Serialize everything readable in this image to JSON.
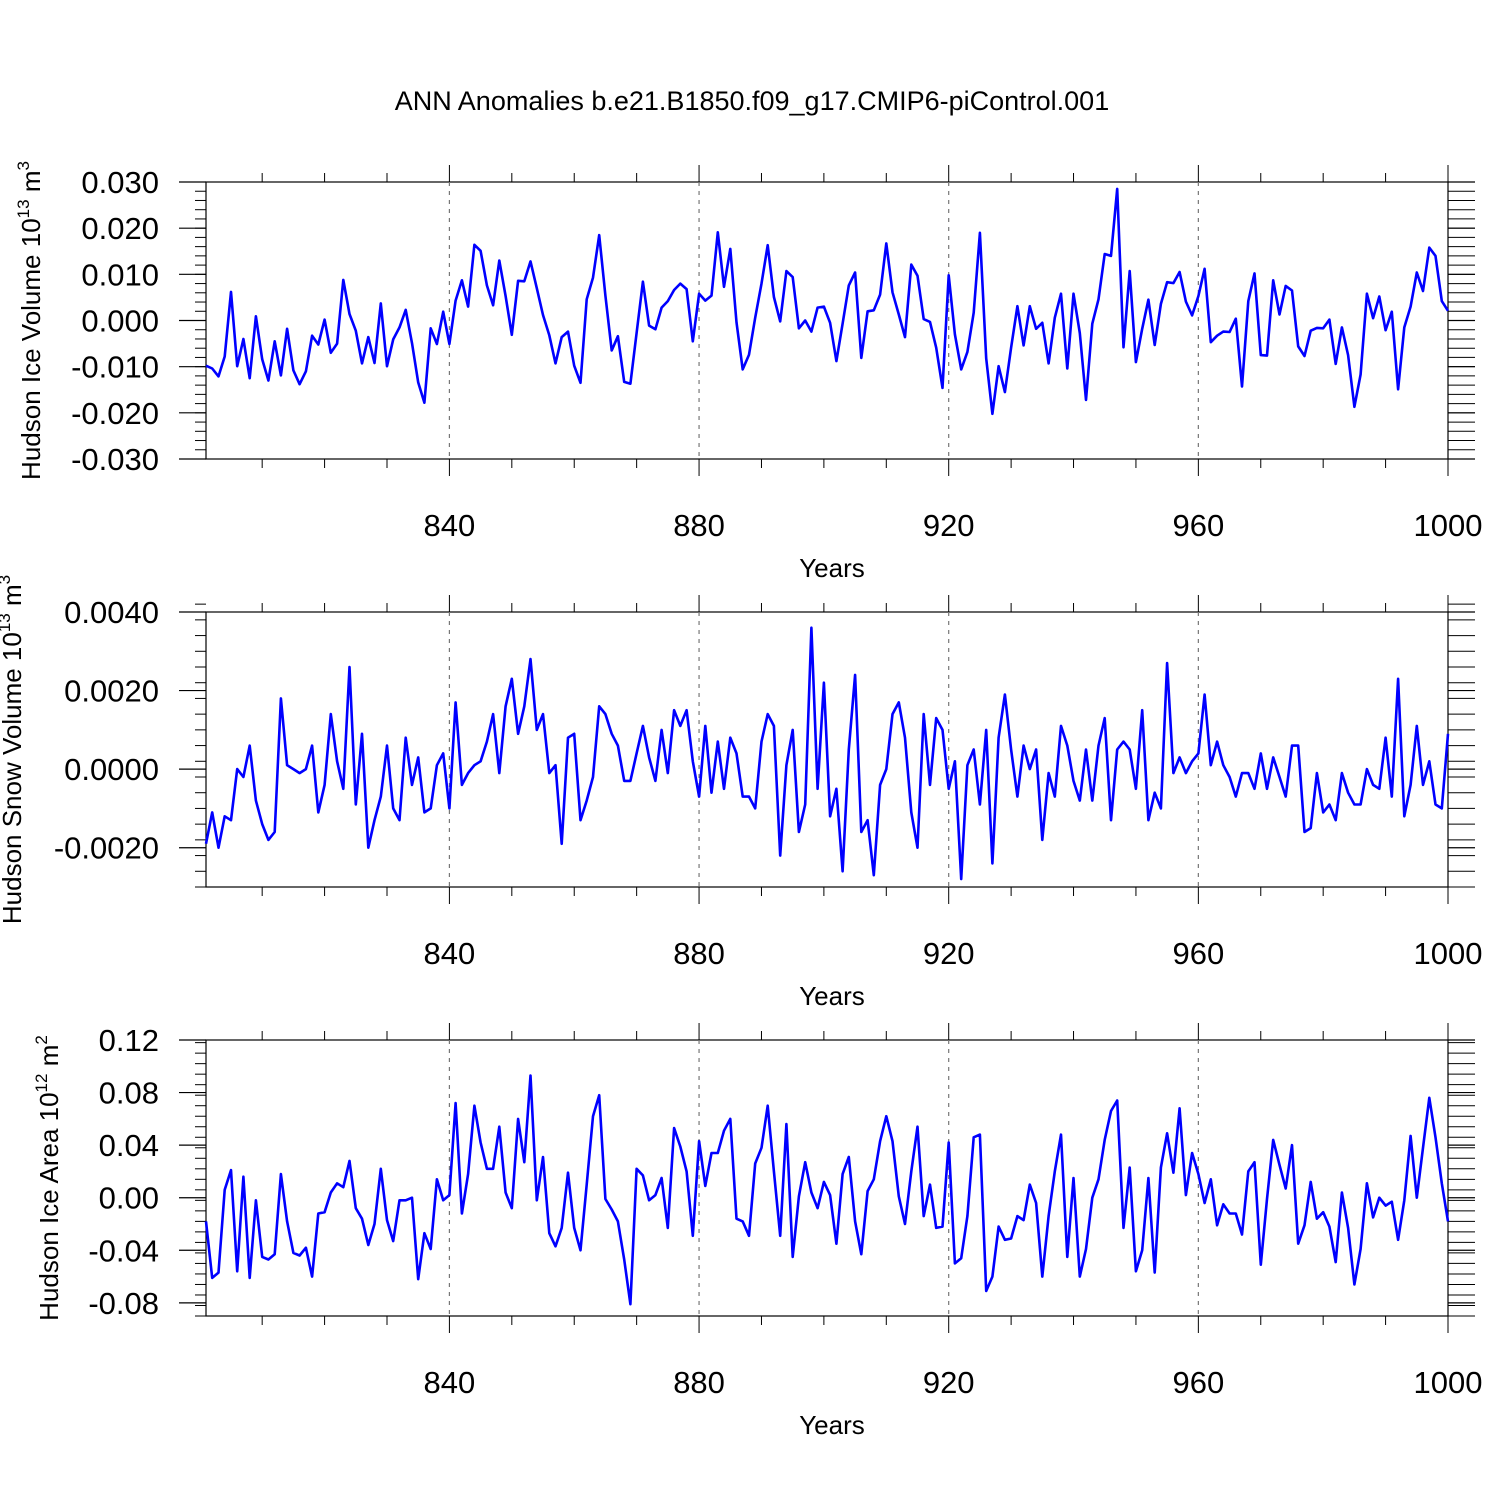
{
  "figure_title": "ANN Anomalies b.e21.B1850.f09_g17.CMIP6-piControl.001",
  "chart_data": [
    {
      "type": "line",
      "ylabel": "Hudson Ice Volume",
      "unit_base": "10",
      "unit_exp": "13",
      "unit_rest": "m",
      "unit_rest_exp": "3",
      "xlabel": "Years",
      "xlim": [
        801,
        1000
      ],
      "ylim": [
        -0.03,
        0.03
      ],
      "yticks": [
        -0.03,
        -0.02,
        -0.01,
        0.0,
        0.01,
        0.02,
        0.03
      ],
      "ytick_labels": [
        "-0.030",
        "-0.020",
        "-0.010",
        "0.000",
        "0.010",
        "0.020",
        "0.030"
      ],
      "xticks": [
        840,
        880,
        920,
        960,
        1000
      ],
      "xtick_labels": [
        "840",
        "880",
        "920",
        "960",
        "1000"
      ],
      "line_color": "#0000ff",
      "x_start": 801,
      "values": [
        -0.0098,
        -0.0104,
        -0.0121,
        -0.0078,
        0.0062,
        -0.0099,
        -0.004,
        -0.0125,
        0.0009,
        -0.0084,
        -0.013,
        -0.0045,
        -0.0119,
        -0.0018,
        -0.0108,
        -0.0138,
        -0.011,
        -0.0033,
        -0.0052,
        0.0002,
        -0.007,
        -0.005,
        0.0088,
        0.0014,
        -0.0022,
        -0.0093,
        -0.0036,
        -0.0092,
        0.0037,
        -0.0099,
        -0.0041,
        -0.0015,
        0.0023,
        -0.0049,
        -0.0134,
        -0.0178,
        -0.0017,
        -0.0051,
        0.0019,
        -0.0051,
        0.0043,
        0.0087,
        0.003,
        0.0164,
        0.0151,
        0.0076,
        0.0033,
        0.013,
        0.0053,
        -0.0031,
        0.0086,
        0.0085,
        0.0128,
        0.007,
        0.0012,
        -0.0032,
        -0.0093,
        -0.0036,
        -0.0024,
        -0.0098,
        -0.0135,
        0.0046,
        0.0093,
        0.0185,
        0.0054,
        -0.0065,
        -0.0034,
        -0.0133,
        -0.0137,
        -0.0027,
        0.0084,
        -0.0011,
        -0.0019,
        0.0028,
        0.0042,
        0.0066,
        0.008,
        0.0068,
        -0.0045,
        0.0058,
        0.0043,
        0.0054,
        0.0191,
        0.0073,
        0.0155,
        -0.0004,
        -0.0106,
        -0.0074,
        0.0006,
        0.008,
        0.0163,
        0.0051,
        -0.0002,
        0.0107,
        0.0094,
        -0.0017,
        0.0,
        -0.0024,
        0.0028,
        0.003,
        -0.0005,
        -0.0088,
        -0.0007,
        0.0076,
        0.0104,
        -0.0081,
        0.002,
        0.0022,
        0.0056,
        0.0167,
        0.0061,
        0.0013,
        -0.0036,
        0.0121,
        0.0097,
        0.0003,
        -0.0003,
        -0.0059,
        -0.0146,
        0.0098,
        -0.003,
        -0.0106,
        -0.0068,
        0.0017,
        0.019,
        -0.0082,
        -0.0202,
        -0.0099,
        -0.0155,
        -0.0059,
        0.0031,
        -0.0054,
        0.0031,
        -0.0018,
        -0.0005,
        -0.0093,
        0.0006,
        0.0058,
        -0.0104,
        0.0058,
        -0.0027,
        -0.0172,
        -0.0007,
        0.0046,
        0.0144,
        0.014,
        0.0285,
        -0.0058,
        0.0107,
        -0.009,
        -0.0018,
        0.0045,
        -0.0053,
        0.0036,
        0.0083,
        0.0081,
        0.0105,
        0.0041,
        0.0011,
        0.0053,
        0.0112,
        -0.0047,
        -0.0033,
        -0.0024,
        -0.0025,
        0.0004,
        -0.0143,
        0.0042,
        0.0102,
        -0.0075,
        -0.0076,
        0.0087,
        0.0013,
        0.0075,
        0.0065,
        -0.0056,
        -0.0077,
        -0.0022,
        -0.0016,
        -0.0017,
        0.0002,
        -0.0094,
        -0.0015,
        -0.0075,
        -0.0187,
        -0.0117,
        0.0058,
        0.0005,
        0.0052,
        -0.0021,
        0.0019,
        -0.0149,
        -0.0015,
        0.003,
        0.0104,
        0.0064,
        0.0158,
        0.014,
        0.0042,
        0.0021
      ]
    },
    {
      "type": "line",
      "ylabel": "Hudson Snow Volume",
      "unit_base": "10",
      "unit_exp": "13",
      "unit_rest": "m",
      "unit_rest_exp": "3",
      "xlabel": "Years",
      "xlim": [
        801,
        1000
      ],
      "ylim": [
        -0.003,
        0.004
      ],
      "yticks": [
        -0.002,
        0.0,
        0.002,
        0.004
      ],
      "ytick_labels": [
        "-0.0020",
        "0.0000",
        "0.0020",
        "0.0040"
      ],
      "xticks": [
        840,
        880,
        920,
        960,
        1000
      ],
      "xtick_labels": [
        "840",
        "880",
        "920",
        "960",
        "1000"
      ],
      "line_color": "#0000ff",
      "x_start": 801,
      "values": [
        -0.0019,
        -0.0011,
        -0.002,
        -0.0012,
        -0.0013,
        0.0,
        -0.0002,
        0.0006,
        -0.0008,
        -0.0014,
        -0.0018,
        -0.0016,
        0.0018,
        0.0001,
        0.0,
        -0.0001,
        0.0,
        0.0006,
        -0.0011,
        -0.0004,
        0.0014,
        0.0002,
        -0.0005,
        0.0026,
        -0.0009,
        0.0009,
        -0.002,
        -0.0013,
        -0.0007,
        0.0006,
        -0.001,
        -0.0013,
        0.0008,
        -0.0004,
        0.0003,
        -0.0011,
        -0.001,
        0.0001,
        0.0004,
        -0.001,
        0.0017,
        -0.0004,
        -0.0001,
        0.0001,
        0.0002,
        0.0007,
        0.0014,
        -0.0001,
        0.0016,
        0.0023,
        0.0009,
        0.0016,
        0.0028,
        0.001,
        0.0014,
        -0.0001,
        0.0001,
        -0.0019,
        0.0008,
        0.0009,
        -0.0013,
        -0.0008,
        -0.0002,
        0.0016,
        0.0014,
        0.0009,
        0.0006,
        -0.0003,
        -0.0003,
        0.0004,
        0.0011,
        0.0003,
        -0.0003,
        0.001,
        -0.0001,
        0.0015,
        0.0011,
        0.0015,
        0.0002,
        -0.0007,
        0.0011,
        -0.0006,
        0.0007,
        -0.0005,
        0.0008,
        0.0004,
        -0.0007,
        -0.0007,
        -0.001,
        0.0007,
        0.0014,
        0.0011,
        -0.0022,
        0.0001,
        0.001,
        -0.0016,
        -0.0009,
        0.0036,
        -0.0005,
        0.0022,
        -0.0012,
        -0.0005,
        -0.0026,
        0.0005,
        0.0024,
        -0.0016,
        -0.0013,
        -0.0027,
        -0.0004,
        0.0,
        0.0014,
        0.0017,
        0.0008,
        -0.0011,
        -0.002,
        0.0014,
        -0.0004,
        0.0013,
        0.001,
        -0.0005,
        0.0002,
        -0.0028,
        0.0001,
        0.0005,
        -0.0009,
        0.001,
        -0.0024,
        0.0008,
        0.0019,
        0.0005,
        -0.0007,
        0.0006,
        0.0,
        0.0005,
        -0.0018,
        -0.0001,
        -0.0007,
        0.0011,
        0.0006,
        -0.0003,
        -0.0008,
        0.0005,
        -0.0008,
        0.0006,
        0.0013,
        -0.0013,
        0.0005,
        0.0007,
        0.0005,
        -0.0005,
        0.0015,
        -0.0013,
        -0.0006,
        -0.001,
        0.0027,
        -0.0001,
        0.0003,
        -0.0001,
        0.0002,
        0.0004,
        0.0019,
        0.0001,
        0.0007,
        0.0001,
        -0.0002,
        -0.0007,
        -0.0001,
        -0.0001,
        -0.0005,
        0.0004,
        -0.0005,
        0.0003,
        -0.0002,
        -0.0007,
        0.0006,
        0.0006,
        -0.0016,
        -0.0015,
        -0.0001,
        -0.0011,
        -0.0009,
        -0.0013,
        -0.0001,
        -0.0006,
        -0.0009,
        -0.0009,
        0.0,
        -0.0004,
        -0.0005,
        0.0008,
        -0.0007,
        0.0023,
        -0.0012,
        -0.0004,
        0.0011,
        -0.0004,
        0.0002,
        -0.0009,
        -0.001,
        0.0009
      ]
    },
    {
      "type": "line",
      "ylabel": "Hudson Ice Area",
      "unit_base": "10",
      "unit_exp": "12",
      "unit_rest": "m",
      "unit_rest_exp": "2",
      "xlabel": "Years",
      "xlim": [
        801,
        1000
      ],
      "ylim": [
        -0.09,
        0.12
      ],
      "yticks": [
        -0.08,
        -0.04,
        0.0,
        0.04,
        0.08,
        0.12
      ],
      "ytick_labels": [
        "-0.08",
        "-0.04",
        "0.00",
        "0.04",
        "0.08",
        "0.12"
      ],
      "xticks": [
        840,
        880,
        920,
        960,
        1000
      ],
      "xtick_labels": [
        "840",
        "880",
        "920",
        "960",
        "1000"
      ],
      "line_color": "#0000ff",
      "x_start": 801,
      "values": [
        -0.018,
        -0.061,
        -0.057,
        0.006,
        0.021,
        -0.056,
        0.016,
        -0.061,
        -0.002,
        -0.045,
        -0.047,
        -0.043,
        0.018,
        -0.018,
        -0.042,
        -0.044,
        -0.038,
        -0.06,
        -0.012,
        -0.011,
        0.004,
        0.011,
        0.008,
        0.028,
        -0.008,
        -0.016,
        -0.036,
        -0.02,
        0.022,
        -0.017,
        -0.033,
        -0.002,
        -0.002,
        0.0,
        -0.062,
        -0.027,
        -0.039,
        0.014,
        -0.002,
        0.002,
        0.072,
        -0.012,
        0.018,
        0.07,
        0.042,
        0.022,
        0.022,
        0.054,
        0.004,
        -0.008,
        0.06,
        0.027,
        0.093,
        -0.002,
        0.031,
        -0.027,
        -0.037,
        -0.023,
        0.019,
        -0.023,
        -0.04,
        0.01,
        0.062,
        0.078,
        -0.001,
        -0.009,
        -0.018,
        -0.047,
        -0.081,
        0.022,
        0.017,
        -0.002,
        0.002,
        0.015,
        -0.023,
        0.053,
        0.039,
        0.02,
        -0.029,
        0.043,
        0.009,
        0.034,
        0.034,
        0.051,
        0.06,
        -0.016,
        -0.018,
        -0.029,
        0.026,
        0.038,
        0.07,
        0.02,
        -0.029,
        0.056,
        -0.045,
        0.001,
        0.027,
        0.004,
        -0.008,
        0.012,
        0.002,
        -0.035,
        0.018,
        0.031,
        -0.018,
        -0.043,
        0.005,
        0.014,
        0.043,
        0.062,
        0.043,
        0.001,
        -0.02,
        0.02,
        0.054,
        -0.014,
        0.01,
        -0.023,
        -0.022,
        0.042,
        -0.05,
        -0.046,
        -0.014,
        0.046,
        0.048,
        -0.071,
        -0.06,
        -0.022,
        -0.032,
        -0.031,
        -0.014,
        -0.017,
        0.01,
        -0.004,
        -0.06,
        -0.014,
        0.02,
        0.048,
        -0.045,
        0.015,
        -0.06,
        -0.039,
        0.0,
        0.014,
        0.044,
        0.066,
        0.074,
        -0.023,
        0.023,
        -0.056,
        -0.04,
        0.015,
        -0.057,
        0.023,
        0.049,
        0.019,
        0.068,
        0.002,
        0.034,
        0.018,
        -0.004,
        0.014,
        -0.021,
        -0.005,
        -0.012,
        -0.012,
        -0.028,
        0.02,
        0.027,
        -0.051,
        -0.001,
        0.044,
        0.025,
        0.007,
        0.04,
        -0.035,
        -0.021,
        0.012,
        -0.016,
        -0.011,
        -0.022,
        -0.049,
        0.004,
        -0.023,
        -0.066,
        -0.039,
        0.011,
        -0.015,
        0.0,
        -0.006,
        -0.003,
        -0.032,
        -0.002,
        0.047,
        0.0,
        0.038,
        0.076,
        0.046,
        0.011,
        -0.018
      ]
    }
  ]
}
